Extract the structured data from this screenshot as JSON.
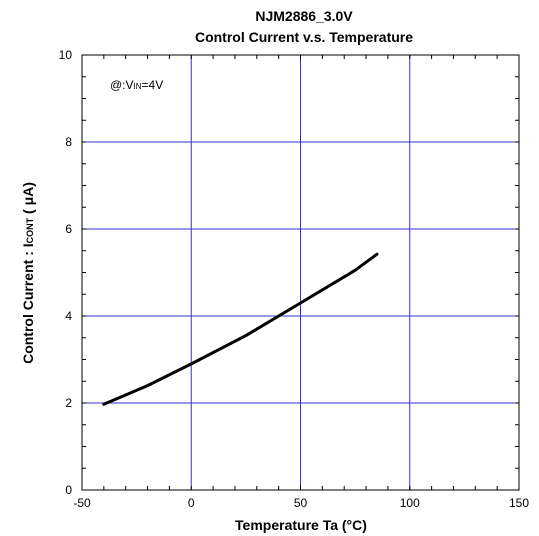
{
  "chart_data": {
    "type": "line",
    "title": "NJM2886_3.0V",
    "subtitle": "Control Current v.s. Temperature",
    "xlabel": "Temperature Ta (°C)",
    "ylabel": "Control Current : I",
    "ylabel_sub": "CONT",
    "ylabel_unit": " ( μA)",
    "annotation": "@:V",
    "annotation_sub": "IN",
    "annotation_value": "=4V",
    "xlim": [
      -50,
      150
    ],
    "ylim": [
      0,
      10
    ],
    "xticks": [
      -50,
      0,
      50,
      100,
      150
    ],
    "yticks": [
      0,
      2,
      4,
      6,
      8,
      10
    ],
    "x_tick_labels": [
      "-50",
      "0",
      "50",
      "100",
      "150"
    ],
    "y_tick_labels": [
      "0",
      "2",
      "4",
      "6",
      "8",
      "10"
    ],
    "grid": true,
    "grid_color": "#3333cc",
    "line_color": "#000000",
    "series": [
      {
        "x": [
          -40,
          -20,
          0,
          25,
          50,
          75,
          85
        ],
        "y": [
          1.97,
          2.4,
          2.9,
          3.55,
          4.3,
          5.05,
          5.42
        ]
      }
    ]
  }
}
